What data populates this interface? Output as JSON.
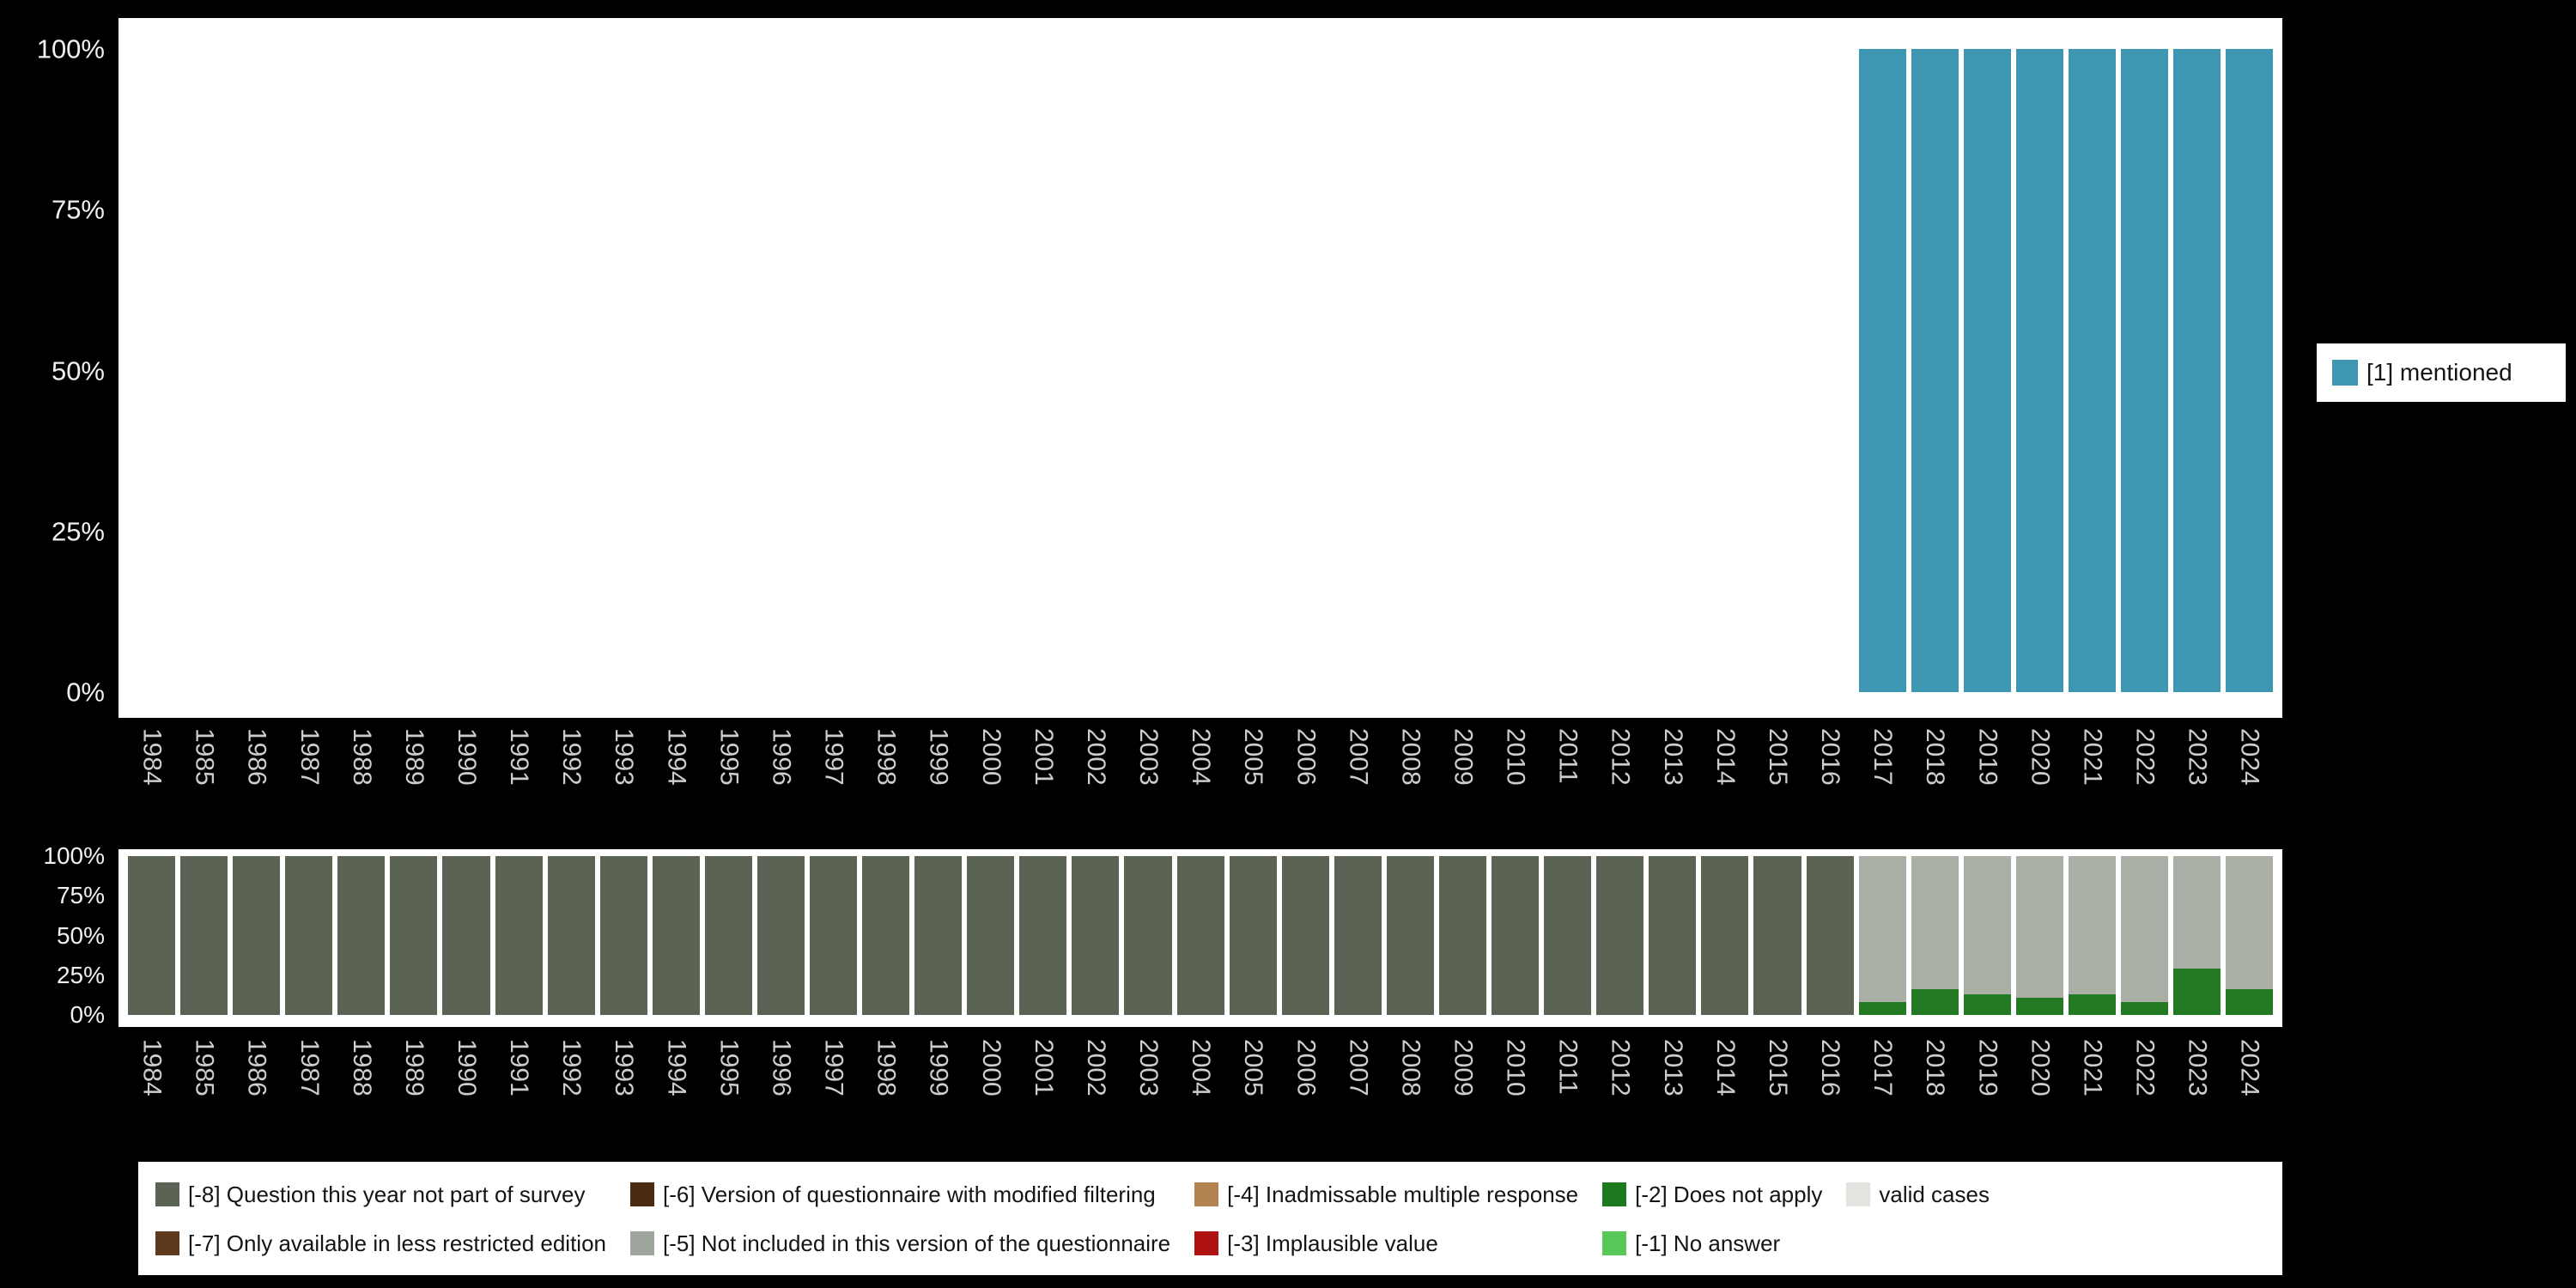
{
  "colors": {
    "background": "#000000",
    "panel": "#ffffff",
    "bar_mentioned": "#3d97b2",
    "axis_year_text": "#cdcdcd",
    "axis_percent_text": "#f0f0f0"
  },
  "chart_data": [
    {
      "id": "frequencies",
      "type": "bar",
      "stacked": true,
      "title": "",
      "xlabel": "",
      "ylabel": "",
      "ylim": [
        0,
        100
      ],
      "grid": false,
      "legend_position": "right",
      "yticks": [
        0,
        25,
        50,
        75,
        100
      ],
      "ytick_labels": [
        "0%",
        "25%",
        "50%",
        "75%",
        "100%"
      ],
      "x": [
        "1984",
        "1985",
        "1986",
        "1987",
        "1988",
        "1989",
        "1990",
        "1991",
        "1992",
        "1993",
        "1994",
        "1995",
        "1996",
        "1997",
        "1998",
        "1999",
        "2000",
        "2001",
        "2002",
        "2003",
        "2004",
        "2005",
        "2006",
        "2007",
        "2008",
        "2009",
        "2010",
        "2011",
        "2012",
        "2013",
        "2014",
        "2015",
        "2016",
        "2017",
        "2018",
        "2019",
        "2020",
        "2021",
        "2022",
        "2023",
        "2024"
      ],
      "series": [
        {
          "name": "[1] mentioned",
          "color": "#3d97b2",
          "values": [
            0,
            0,
            0,
            0,
            0,
            0,
            0,
            0,
            0,
            0,
            0,
            0,
            0,
            0,
            0,
            0,
            0,
            0,
            0,
            0,
            0,
            0,
            0,
            0,
            0,
            0,
            0,
            0,
            0,
            0,
            0,
            0,
            0,
            100,
            100,
            100,
            100,
            100,
            100,
            100,
            100
          ]
        }
      ]
    },
    {
      "id": "missings",
      "type": "bar",
      "stacked": true,
      "title": "",
      "xlabel": "",
      "ylabel": "",
      "ylim": [
        0,
        100
      ],
      "grid": false,
      "legend_position": "bottom",
      "yticks": [
        0,
        25,
        50,
        75,
        100
      ],
      "ytick_labels": [
        "0%",
        "25%",
        "50%",
        "75%",
        "100%"
      ],
      "x": [
        "1984",
        "1985",
        "1986",
        "1987",
        "1988",
        "1989",
        "1990",
        "1991",
        "1992",
        "1993",
        "1994",
        "1995",
        "1996",
        "1997",
        "1998",
        "1999",
        "2000",
        "2001",
        "2002",
        "2003",
        "2004",
        "2005",
        "2006",
        "2007",
        "2008",
        "2009",
        "2010",
        "2011",
        "2012",
        "2013",
        "2014",
        "2015",
        "2016",
        "2017",
        "2018",
        "2019",
        "2020",
        "2021",
        "2022",
        "2023",
        "2024"
      ],
      "series": [
        {
          "name": "[-8] Question this year not part of survey",
          "color": "#5b6355",
          "values": [
            100,
            100,
            100,
            100,
            100,
            100,
            100,
            100,
            100,
            100,
            100,
            100,
            100,
            100,
            100,
            100,
            100,
            100,
            100,
            100,
            100,
            100,
            100,
            100,
            100,
            100,
            100,
            100,
            100,
            100,
            100,
            100,
            100,
            0,
            0,
            0,
            0,
            0,
            0,
            0,
            0
          ]
        },
        {
          "name": "[-2] Does not apply",
          "color": "#237a23",
          "values": [
            0,
            0,
            0,
            0,
            0,
            0,
            0,
            0,
            0,
            0,
            0,
            0,
            0,
            0,
            0,
            0,
            0,
            0,
            0,
            0,
            0,
            0,
            0,
            0,
            0,
            0,
            0,
            0,
            0,
            0,
            0,
            0,
            0,
            8,
            16,
            13,
            11,
            13,
            8,
            29,
            16
          ]
        },
        {
          "name": "valid cases",
          "color": "#a9afa4",
          "values": [
            0,
            0,
            0,
            0,
            0,
            0,
            0,
            0,
            0,
            0,
            0,
            0,
            0,
            0,
            0,
            0,
            0,
            0,
            0,
            0,
            0,
            0,
            0,
            0,
            0,
            0,
            0,
            0,
            0,
            0,
            0,
            0,
            0,
            92,
            84,
            87,
            89,
            87,
            92,
            71,
            84
          ]
        }
      ]
    }
  ],
  "top_legend": {
    "items": [
      {
        "label": "[1] mentioned",
        "color": "#3d97b2"
      }
    ]
  },
  "missing_legend": {
    "rows": [
      [
        {
          "label": "[-8] Question this year not part of survey",
          "color": "#5b6355"
        },
        {
          "label": "[-6] Version of questionnaire with modified filtering",
          "color": "#4a2c14"
        },
        {
          "label": "[-4] Inadmissable multiple response",
          "color": "#b28350"
        },
        {
          "label": "[-2] Does not apply",
          "color": "#1e7a1e"
        },
        {
          "label": "valid cases",
          "color": "#e2e4df"
        }
      ],
      [
        {
          "label": "[-7] Only available in less restricted edition",
          "color": "#5d3a1e"
        },
        {
          "label": "[-5] Not included in this version of the questionnaire",
          "color": "#9ea59d"
        },
        {
          "label": "[-3] Implausible value",
          "color": "#b01212"
        },
        {
          "label": "[-1] No answer",
          "color": "#58c858"
        }
      ]
    ]
  }
}
